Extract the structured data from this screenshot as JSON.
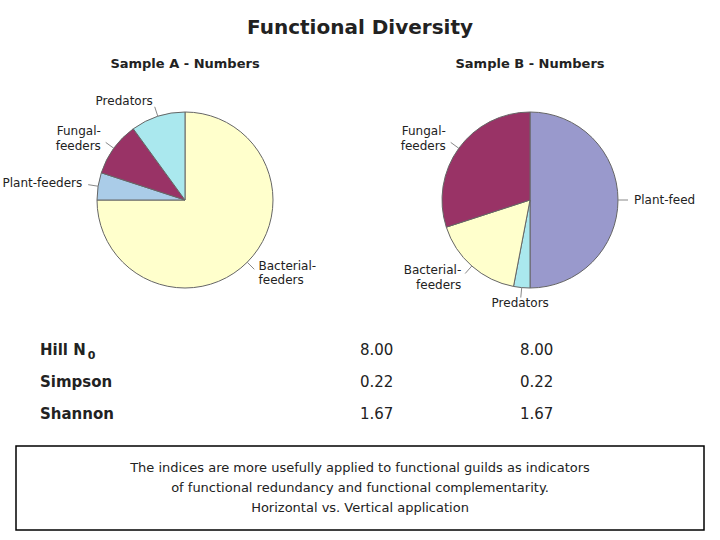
{
  "title": "Functional Diversity",
  "chart_data": [
    {
      "type": "pie",
      "title": "Sample A - Numbers",
      "categories": [
        "Bacterial-\nfeeders",
        "Plant-feeders",
        "Fungal-\nfeeders",
        "Predators"
      ],
      "values": [
        75,
        5,
        10,
        10
      ],
      "colors": [
        "#ffffcc",
        "#aacce8",
        "#993366",
        "#aae8ee"
      ]
    },
    {
      "type": "pie",
      "title": "Sample B - Numbers",
      "categories": [
        "Plant-feed",
        "Predators",
        "Bacterial-\nfeeders",
        "Fungal-\nfeeders"
      ],
      "values": [
        50,
        3,
        17,
        30
      ],
      "colors": [
        "#9999cc",
        "#aae8ee",
        "#ffffcc",
        "#993366"
      ]
    },
    {
      "type": "table",
      "rows": [
        {
          "label": "Hill N",
          "sub": "0",
          "values": [
            8.0,
            8.0
          ],
          "value_labels": [
            "8.00",
            "8.00"
          ]
        },
        {
          "label": "Simpson",
          "values": [
            0.22,
            0.22
          ],
          "value_labels": [
            "0.22",
            "0.22"
          ]
        },
        {
          "label": "Shannon",
          "values": [
            1.67,
            1.67
          ],
          "value_labels": [
            "1.67",
            "1.67"
          ]
        }
      ]
    }
  ],
  "annotations": [
    "The indices are more usefully applied to functional guilds as indicators\nof functional redundancy and functional complementarity.\nHorizontal vs. Vertical application"
  ]
}
